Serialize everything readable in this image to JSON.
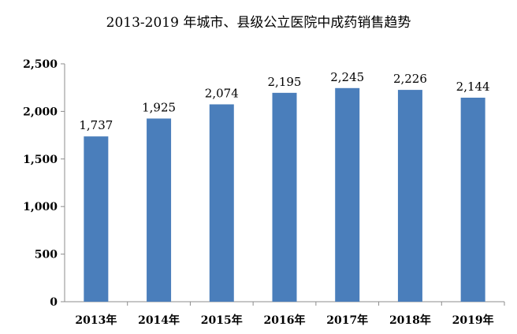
{
  "chart_data": {
    "type": "bar",
    "title": "2013-2019 年城市、县级公立医院中成药销售趋势",
    "categories": [
      "2013年",
      "2014年",
      "2015年",
      "2016年",
      "2017年",
      "2018年",
      "2019年"
    ],
    "values": [
      1737,
      1925,
      2074,
      2195,
      2245,
      2226,
      2144
    ],
    "data_labels": [
      "1,737",
      "1,925",
      "2,074",
      "2,195",
      "2,245",
      "2,226",
      "2,144"
    ],
    "y_ticks": [
      0,
      500,
      1000,
      1500,
      2000,
      2500
    ],
    "y_tick_labels": [
      "0",
      "500",
      "1,000",
      "1,500",
      "2,000",
      "2,500"
    ],
    "ylim": [
      0,
      2500
    ],
    "xlabel": "",
    "ylabel": "",
    "grid": false,
    "bar_color": "#4a7ebb"
  }
}
